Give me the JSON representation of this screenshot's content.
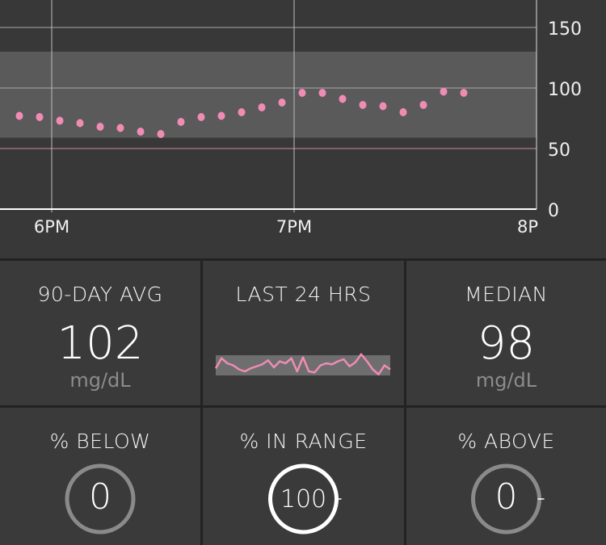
{
  "chart_data": {
    "type": "scatter",
    "x_ticks": [
      "6PM",
      "7PM",
      "8P"
    ],
    "y_ticks": [
      0,
      50,
      100,
      150
    ],
    "ylim": [
      0,
      173
    ],
    "xlim": [
      "5:47PM",
      "8:00PM"
    ],
    "target_range": [
      59,
      130
    ],
    "low_threshold": 50,
    "grid": true,
    "colors": {
      "points": "#f08cb4",
      "band": "#5a5a5a",
      "low_line": "#c88ca0",
      "background": "#383838"
    },
    "points": [
      {
        "t": "5:52PM",
        "v": 77
      },
      {
        "t": "5:57PM",
        "v": 76
      },
      {
        "t": "6:02PM",
        "v": 73
      },
      {
        "t": "6:07PM",
        "v": 71
      },
      {
        "t": "6:12PM",
        "v": 68
      },
      {
        "t": "6:17PM",
        "v": 67
      },
      {
        "t": "6:22PM",
        "v": 64
      },
      {
        "t": "6:27PM",
        "v": 62
      },
      {
        "t": "6:32PM",
        "v": 72
      },
      {
        "t": "6:37PM",
        "v": 76
      },
      {
        "t": "6:42PM",
        "v": 77
      },
      {
        "t": "6:47PM",
        "v": 80
      },
      {
        "t": "6:52PM",
        "v": 84
      },
      {
        "t": "6:57PM",
        "v": 88
      },
      {
        "t": "7:02PM",
        "v": 96
      },
      {
        "t": "7:07PM",
        "v": 96
      },
      {
        "t": "7:12PM",
        "v": 91
      },
      {
        "t": "7:17PM",
        "v": 86
      },
      {
        "t": "7:22PM",
        "v": 85
      },
      {
        "t": "7:27PM",
        "v": 80
      },
      {
        "t": "7:32PM",
        "v": 86
      },
      {
        "t": "7:37PM",
        "v": 97
      },
      {
        "t": "7:42PM",
        "v": 96
      }
    ]
  },
  "stats": {
    "avg90": {
      "title": "90-DAY AVG",
      "value": "102",
      "unit": "mg/dL"
    },
    "last24": {
      "title": "LAST 24 HRS",
      "sparkline": [
        0.35,
        0.85,
        0.6,
        0.5,
        0.3,
        0.2,
        0.35,
        0.45,
        0.55,
        0.75,
        0.4,
        0.7,
        0.6,
        0.85,
        0.2,
        0.9,
        0.2,
        0.15,
        0.5,
        0.6,
        0.55,
        0.7,
        0.8,
        0.45,
        0.65,
        1.05,
        0.7,
        0.3,
        0.05,
        0.5,
        0.3
      ]
    },
    "median": {
      "title": "MEDIAN",
      "value": "98",
      "unit": "mg/dL"
    },
    "below": {
      "title": "% BELOW",
      "value": "0",
      "percent": 0
    },
    "in_range": {
      "title": "% IN RANGE",
      "value": "100",
      "percent": 100
    },
    "above": {
      "title": "% ABOVE",
      "value": "0",
      "percent": 0
    }
  }
}
